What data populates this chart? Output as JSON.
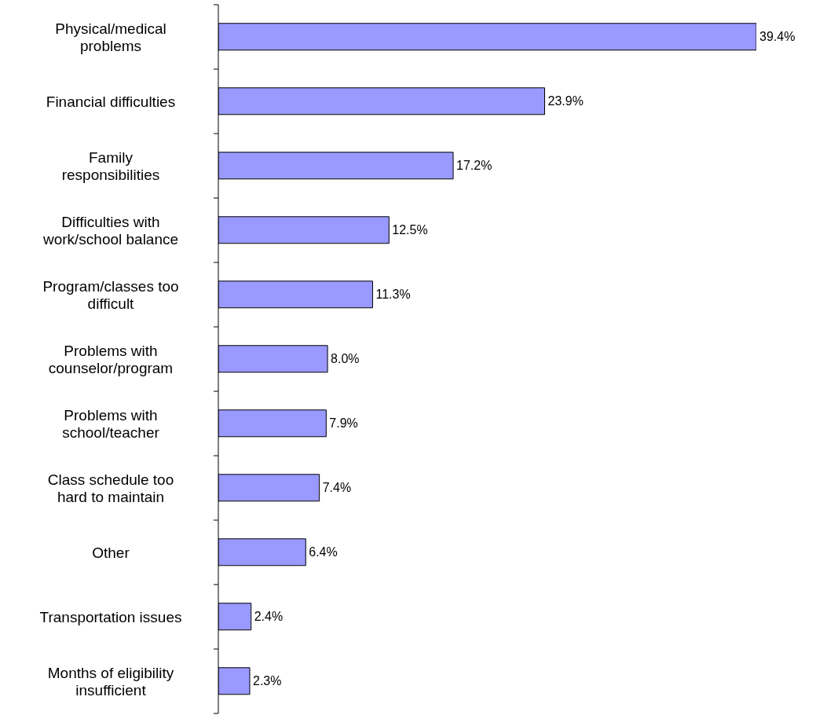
{
  "chart_data": {
    "type": "bar",
    "orientation": "horizontal",
    "categories": [
      "Physical/medical problems",
      "Financial difficulties",
      "Family responsibilities",
      "Difficulties with work/school balance",
      "Program/classes too difficult",
      "Problems with counselor/program",
      "Problems with school/teacher",
      "Class schedule too hard to maintain",
      "Other",
      "Transportation issues",
      "Months of eligibility insufficient"
    ],
    "values": [
      39.4,
      23.9,
      17.2,
      12.5,
      11.3,
      8.0,
      7.9,
      7.4,
      6.4,
      2.4,
      2.3
    ],
    "value_labels": [
      "39.4%",
      "23.9%",
      "17.2%",
      "12.5%",
      "11.3%",
      "8.0%",
      "7.9%",
      "7.4%",
      "6.4%",
      "2.4%",
      "2.3%"
    ],
    "color": "#9999ff"
  }
}
